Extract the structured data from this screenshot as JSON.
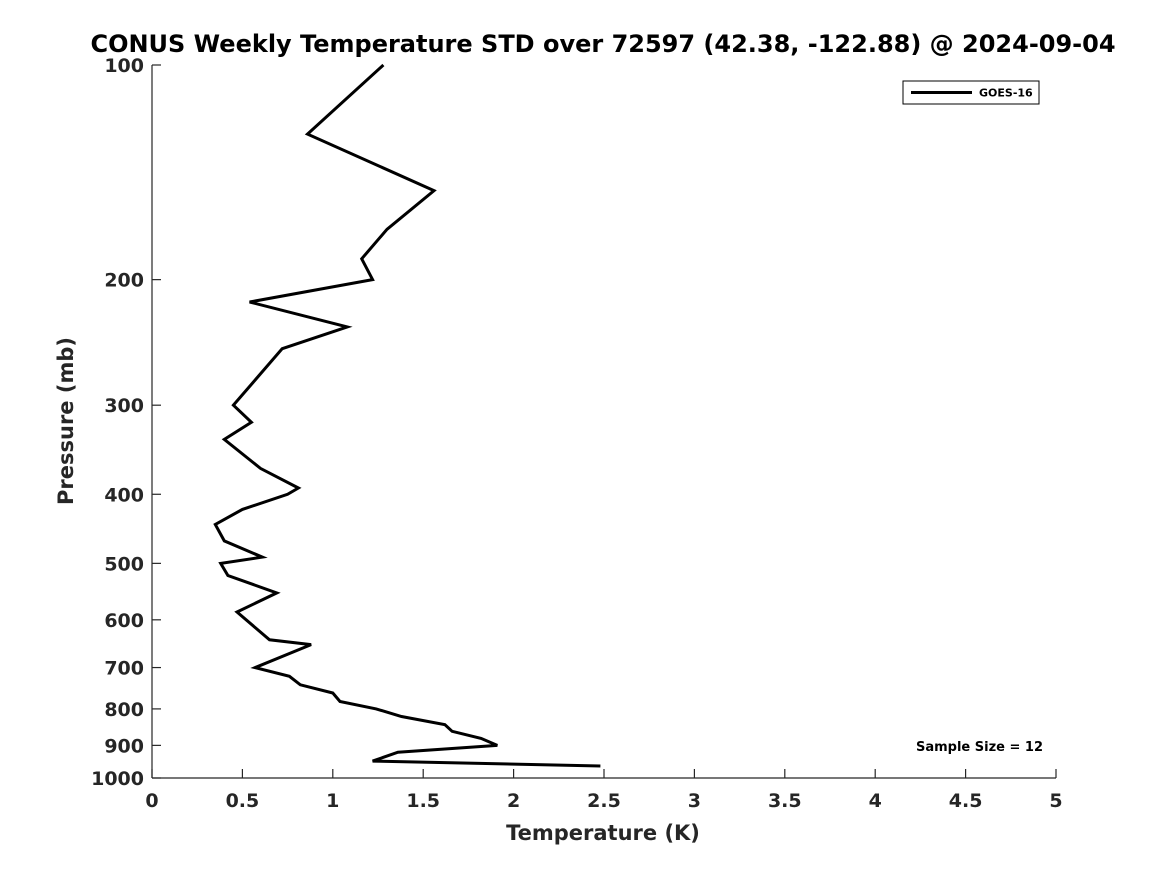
{
  "chart_data": {
    "type": "line",
    "title": "CONUS Weekly Temperature STD over 72597 (42.38, -122.88) @ 2024-09-04",
    "xlabel": "Temperature (K)",
    "ylabel": "Pressure (mb)",
    "xlim": [
      0,
      5
    ],
    "ylim": [
      100,
      1000
    ],
    "yscale": "log",
    "yreversed": true,
    "x_ticks": [
      "0",
      "0.5",
      "1",
      "1.5",
      "2",
      "2.5",
      "3",
      "3.5",
      "4",
      "4.5",
      "5"
    ],
    "y_ticks": [
      "100",
      "200",
      "300",
      "400",
      "500",
      "600",
      "700",
      "800",
      "900",
      "1000"
    ],
    "grid": false,
    "legend": {
      "position": "top-right",
      "entries": [
        "GOES-16"
      ]
    },
    "annotation": "Sample Size = 12",
    "series": [
      {
        "name": "GOES-16",
        "color": "#000000",
        "points": [
          [
            1.28,
            100
          ],
          [
            0.86,
            125
          ],
          [
            1.56,
            150
          ],
          [
            1.3,
            170
          ],
          [
            1.16,
            187
          ],
          [
            1.22,
            200
          ],
          [
            0.54,
            215
          ],
          [
            1.08,
            233
          ],
          [
            0.72,
            250
          ],
          [
            0.45,
            300
          ],
          [
            0.55,
            317
          ],
          [
            0.4,
            335
          ],
          [
            0.6,
            368
          ],
          [
            0.81,
            392
          ],
          [
            0.75,
            400
          ],
          [
            0.5,
            420
          ],
          [
            0.35,
            441
          ],
          [
            0.4,
            465
          ],
          [
            0.61,
            490
          ],
          [
            0.38,
            500
          ],
          [
            0.42,
            520
          ],
          [
            0.69,
            550
          ],
          [
            0.47,
            585
          ],
          [
            0.65,
            640
          ],
          [
            0.88,
            650
          ],
          [
            0.57,
            700
          ],
          [
            0.76,
            720
          ],
          [
            0.82,
            740
          ],
          [
            1.0,
            760
          ],
          [
            1.04,
            781
          ],
          [
            1.24,
            800
          ],
          [
            1.38,
            820
          ],
          [
            1.62,
            842
          ],
          [
            1.66,
            860
          ],
          [
            1.82,
            880
          ],
          [
            1.91,
            900
          ],
          [
            1.36,
            920
          ],
          [
            1.22,
            947
          ],
          [
            2.48,
            962
          ]
        ]
      }
    ]
  }
}
